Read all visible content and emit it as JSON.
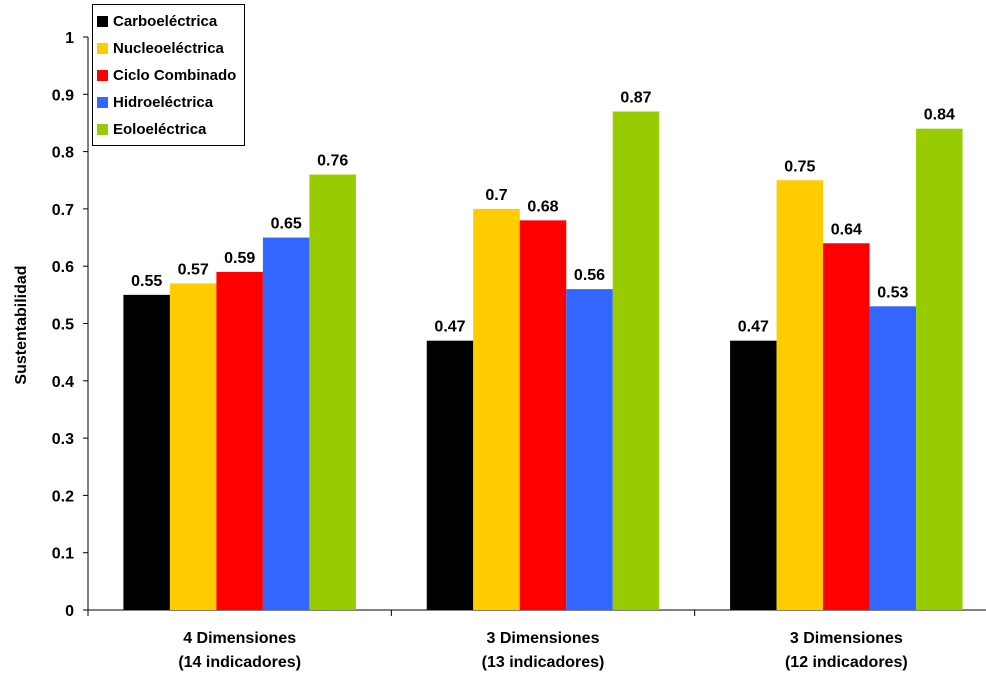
{
  "chart_data": {
    "type": "bar",
    "categories": [
      [
        "4 Dimensiones",
        "(14 indicadores)"
      ],
      [
        "3 Dimensiones",
        "(13 indicadores)"
      ],
      [
        "3 Dimensiones",
        "(12 indicadores)"
      ]
    ],
    "series": [
      {
        "name": "Carboeléctrica",
        "color": "#000000",
        "values": [
          0.55,
          0.47,
          0.47
        ],
        "labels": [
          "0.55",
          "0.47",
          "0.47"
        ]
      },
      {
        "name": "Nucleoeléctrica",
        "color": "#FFCC00",
        "values": [
          0.57,
          0.7,
          0.75
        ],
        "labels": [
          "0.57",
          "0.7",
          "0.75"
        ]
      },
      {
        "name": "Ciclo Combinado",
        "color": "#FF0000",
        "values": [
          0.59,
          0.68,
          0.64
        ],
        "labels": [
          "0.59",
          "0.68",
          "0.64"
        ]
      },
      {
        "name": "Hidroeléctrica",
        "color": "#3366FF",
        "values": [
          0.65,
          0.56,
          0.53
        ],
        "labels": [
          "0.65",
          "0.56",
          "0.53"
        ]
      },
      {
        "name": "Eoloeléctrica",
        "color": "#99CC00",
        "values": [
          0.76,
          0.87,
          0.84
        ],
        "labels": [
          "0.76",
          "0.87",
          "0.84"
        ]
      }
    ],
    "ylabel": "Sustentabilidad",
    "xlabel": "",
    "ylim": [
      0,
      1
    ],
    "yticks": [
      "0",
      "0.1",
      "0.2",
      "0.3",
      "0.4",
      "0.5",
      "0.6",
      "0.7",
      "0.8",
      "0.9",
      "1"
    ],
    "grid": false,
    "legend_position": "top-left"
  }
}
